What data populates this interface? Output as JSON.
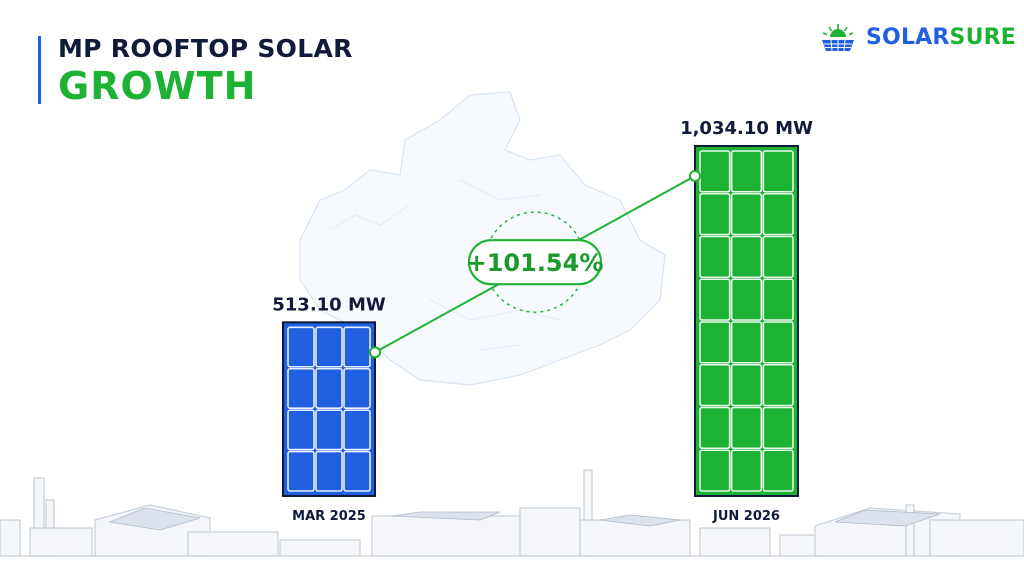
{
  "header": {
    "title_line1": "MP ROOFTOP SOLAR",
    "title_line2": "GROWTH"
  },
  "brand": {
    "name_part1": "SOLAR",
    "name_part2": "SURE",
    "logo_icon": "solar-panel-sun-icon"
  },
  "colors": {
    "blue": "#1f5fe0",
    "green": "#1db233",
    "dark": "#101a3a"
  },
  "chart_data": {
    "type": "bar",
    "categories": [
      "MAR 2025",
      "JUN 2026"
    ],
    "values": [
      513.1,
      1034.1
    ],
    "data_labels": [
      "513.10 MW",
      "1,034.10 MW"
    ],
    "unit": "MW",
    "growth_label": "+101.54%",
    "bar_colors": [
      "#1f5fe0",
      "#1db233"
    ],
    "grid": false,
    "legend": "none"
  },
  "background_icons": [
    "madhya-pradesh-map-outline",
    "factory-skyline"
  ]
}
